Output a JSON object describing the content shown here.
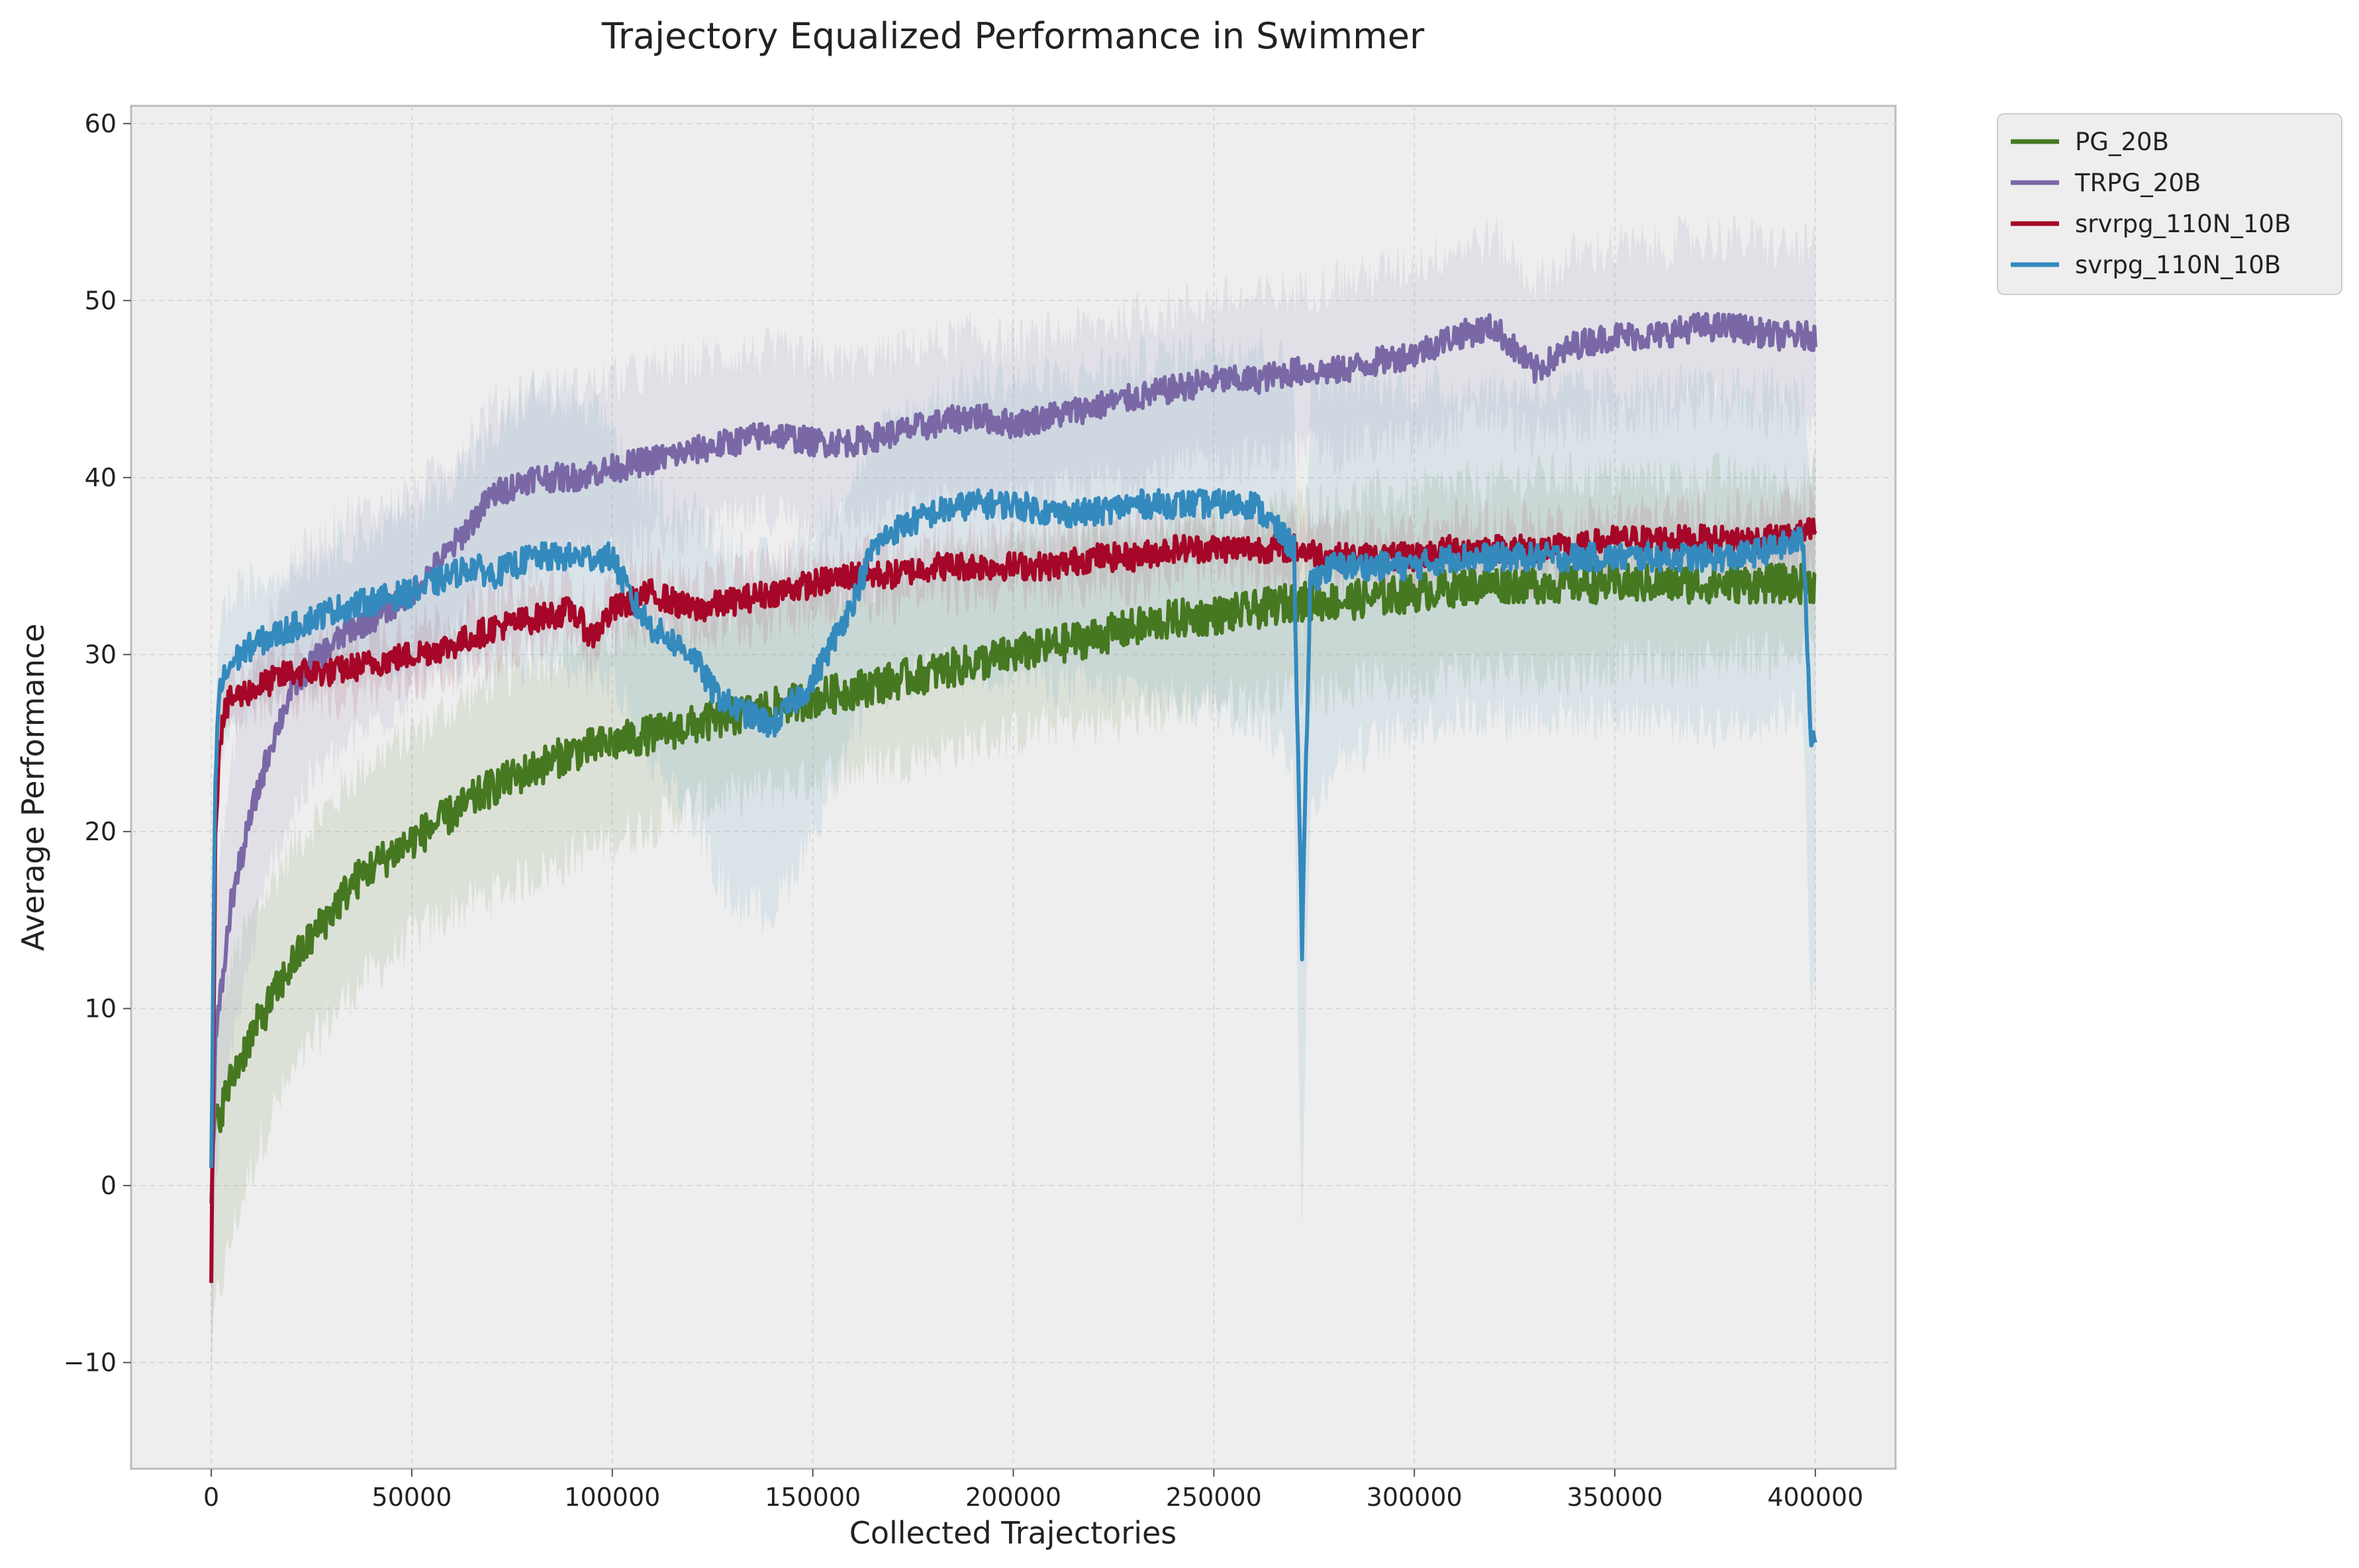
{
  "chart_data": {
    "type": "line",
    "title": "Trajectory Equalized Performance in Swimmer",
    "xlabel": "Collected Trajectories",
    "ylabel": "Average Performance",
    "xlim": [
      -20000,
      420000
    ],
    "ylim": [
      -16,
      61
    ],
    "xticks": [
      0,
      50000,
      100000,
      150000,
      200000,
      250000,
      300000,
      350000,
      400000
    ],
    "xtick_labels": [
      "0",
      "50000",
      "100000",
      "150000",
      "200000",
      "250000",
      "300000",
      "350000",
      "400000"
    ],
    "yticks": [
      -10,
      0,
      10,
      20,
      30,
      40,
      50,
      60
    ],
    "ytick_labels": [
      "−10",
      "0",
      "10",
      "20",
      "30",
      "40",
      "50",
      "60"
    ],
    "grid": true,
    "legend_position": "outside-top-right",
    "background": "#eeeeee",
    "series": [
      {
        "name": "PG_20B",
        "color": "#467821",
        "x": [
          0,
          1000,
          2000,
          5000,
          10000,
          15000,
          20000,
          25000,
          30000,
          35000,
          40000,
          50000,
          60000,
          70000,
          80000,
          90000,
          100000,
          110000,
          120000,
          130000,
          140000,
          150000,
          160000,
          170000,
          180000,
          190000,
          200000,
          210000,
          220000,
          230000,
          240000,
          250000,
          260000,
          270000,
          280000,
          290000,
          300000,
          310000,
          320000,
          330000,
          340000,
          350000,
          360000,
          370000,
          380000,
          390000,
          400000
        ],
        "y": [
          2,
          3.5,
          4,
          6,
          8.5,
          10.5,
          12.5,
          14,
          15.5,
          17,
          18,
          19.5,
          21,
          22.5,
          23.5,
          24.5,
          25,
          25.5,
          26,
          26.5,
          27,
          27.5,
          28,
          28.5,
          29,
          29.5,
          30,
          30.5,
          31,
          31.5,
          32,
          32.2,
          32.5,
          33,
          33,
          33.2,
          33.5,
          33.8,
          34,
          34,
          34,
          34,
          34,
          34,
          34,
          34,
          34
        ],
        "band_lower": [
          -10,
          -7,
          -6,
          -3,
          1,
          4,
          6,
          8,
          9.5,
          11,
          12,
          14,
          15.5,
          16.5,
          17.5,
          18.5,
          19.5,
          20.5,
          21.5,
          22,
          22.5,
          23,
          23.5,
          24,
          24.5,
          25,
          25.5,
          26,
          26,
          26.5,
          27,
          27.5,
          27.5,
          28,
          28,
          28.5,
          28.5,
          29,
          29,
          29,
          29,
          29.5,
          29.5,
          29.5,
          30,
          30,
          30
        ],
        "band_upper": [
          6,
          9,
          10,
          12.5,
          15,
          17,
          19,
          20.5,
          21.5,
          23,
          24,
          25.5,
          27,
          28.5,
          29.5,
          30.5,
          31,
          31.5,
          32,
          32.5,
          33,
          33.5,
          34,
          34.5,
          35,
          35.5,
          36,
          36.5,
          37,
          37,
          37.5,
          38,
          38,
          38.5,
          38.5,
          39,
          39,
          39.5,
          39.5,
          40,
          40,
          40,
          40,
          40,
          40,
          40,
          40
        ]
      },
      {
        "name": "TRPG_20B",
        "color": "#7a68a6",
        "x": [
          0,
          1000,
          2000,
          5000,
          10000,
          15000,
          20000,
          25000,
          30000,
          35000,
          40000,
          50000,
          60000,
          70000,
          80000,
          90000,
          100000,
          110000,
          120000,
          130000,
          140000,
          150000,
          160000,
          170000,
          180000,
          190000,
          200000,
          210000,
          220000,
          230000,
          240000,
          250000,
          260000,
          270000,
          280000,
          290000,
          300000,
          310000,
          320000,
          330000,
          340000,
          350000,
          360000,
          370000,
          380000,
          390000,
          400000
        ],
        "y": [
          -1,
          8,
          10,
          16,
          21,
          25,
          28,
          29.5,
          30.5,
          31.5,
          32,
          33.5,
          36,
          39,
          40,
          40,
          40.5,
          41,
          41.5,
          42,
          42.5,
          42,
          42,
          42.5,
          43,
          43.5,
          43,
          43.5,
          44,
          44.5,
          45,
          45.5,
          45.5,
          46,
          46,
          46.5,
          47,
          48,
          48.5,
          46,
          47.5,
          48,
          48,
          48.5,
          48.5,
          48,
          48
        ],
        "band_lower": [
          -12,
          0,
          2,
          8,
          13,
          18,
          21,
          23,
          24,
          25,
          26,
          28,
          31,
          34,
          35,
          35.5,
          36,
          36.5,
          37,
          37.5,
          38,
          37.5,
          37.5,
          38,
          38.5,
          39,
          38.5,
          39,
          39.5,
          40,
          40.5,
          41,
          41,
          41.5,
          41.5,
          42,
          42,
          43,
          43.5,
          42,
          43,
          43.5,
          43.5,
          44,
          44,
          43.5,
          43.5
        ],
        "band_upper": [
          6,
          16,
          18,
          24,
          29,
          32,
          35,
          36,
          37,
          38,
          38,
          39,
          41,
          44,
          45,
          45,
          45.5,
          46,
          46.5,
          47,
          47,
          46.5,
          46.5,
          47,
          47.5,
          48,
          47.5,
          48,
          48.5,
          49,
          49.5,
          50,
          50,
          50.5,
          51,
          51.5,
          52,
          53,
          53.5,
          51,
          52.5,
          53,
          53,
          53.5,
          53.5,
          53,
          53
        ]
      },
      {
        "name": "srvrpg_110N_10B",
        "color": "#a60628",
        "x": [
          0,
          1000,
          2000,
          3000,
          5000,
          10000,
          15000,
          20000,
          25000,
          30000,
          40000,
          50000,
          60000,
          70000,
          80000,
          90000,
          95000,
          100000,
          110000,
          120000,
          130000,
          140000,
          150000,
          160000,
          170000,
          180000,
          190000,
          200000,
          210000,
          220000,
          230000,
          240000,
          250000,
          260000,
          270000,
          280000,
          290000,
          300000,
          310000,
          320000,
          330000,
          340000,
          350000,
          360000,
          370000,
          380000,
          390000,
          400000
        ],
        "y": [
          -5.5,
          20,
          25,
          26.5,
          27.5,
          28,
          28.5,
          29,
          29,
          29,
          29.5,
          30,
          30.5,
          31.5,
          32,
          32.5,
          31,
          32.5,
          33.5,
          32.5,
          33,
          33.5,
          34,
          34.5,
          34.5,
          35,
          35,
          35,
          35,
          35.5,
          35.5,
          36,
          36,
          36,
          36,
          35.5,
          35.5,
          35.5,
          36,
          36,
          36,
          36,
          36.5,
          36.5,
          36.5,
          36.5,
          36.5,
          37
        ],
        "band_lower": [
          -8,
          18,
          23,
          25,
          26,
          26.5,
          27,
          27.5,
          27.5,
          27.5,
          28,
          28.5,
          29,
          30,
          30.5,
          31,
          29.5,
          31,
          32,
          31,
          31.5,
          32,
          32.5,
          33,
          33,
          33.5,
          33.5,
          33.5,
          33.5,
          34,
          34,
          34.5,
          34.5,
          34.5,
          34.5,
          34,
          34,
          34,
          34.5,
          34.5,
          34.5,
          34.5,
          35,
          35,
          35,
          35,
          35,
          35.5
        ],
        "band_upper": [
          -3,
          22,
          27,
          28,
          29,
          29.5,
          30,
          30.5,
          30.5,
          30.5,
          31,
          31.5,
          32,
          33,
          33.5,
          34,
          32.5,
          34,
          35,
          34,
          34.5,
          35,
          35.5,
          36,
          36,
          36.5,
          36.5,
          36.5,
          36.5,
          37,
          37,
          37.5,
          37.5,
          37.5,
          37.5,
          37,
          37,
          37,
          37.5,
          37.5,
          37.5,
          37.5,
          38,
          38,
          38,
          38,
          38,
          38.5
        ]
      },
      {
        "name": "svrpg_110N_10B",
        "color": "#348abd",
        "x": [
          0,
          1000,
          2000,
          5000,
          10000,
          15000,
          20000,
          25000,
          30000,
          40000,
          50000,
          60000,
          65000,
          70000,
          80000,
          90000,
          100000,
          105000,
          110000,
          120000,
          125000,
          130000,
          140000,
          150000,
          160000,
          165000,
          170000,
          180000,
          190000,
          200000,
          210000,
          220000,
          230000,
          240000,
          250000,
          260000,
          270000,
          272000,
          274000,
          276000,
          280000,
          290000,
          300000,
          310000,
          320000,
          330000,
          340000,
          350000,
          360000,
          370000,
          380000,
          390000,
          397000,
          399000,
          400000
        ],
        "y": [
          1,
          23,
          28,
          29.5,
          30.5,
          31,
          31.5,
          32,
          32.5,
          33,
          33.5,
          34.5,
          35,
          34.5,
          35.5,
          35.5,
          35.5,
          33,
          31.5,
          30,
          28,
          27,
          26,
          28.5,
          33,
          36,
          37,
          38,
          38.5,
          38.5,
          38,
          38,
          38.5,
          38.5,
          38.5,
          38.5,
          36,
          13,
          34,
          34.5,
          35,
          35,
          35,
          35.5,
          35.5,
          35.5,
          35.5,
          35.5,
          35.5,
          35.5,
          35.5,
          36,
          36.5,
          25,
          25.5
        ],
        "band_lower": [
          -5,
          18,
          24,
          26,
          27,
          27.5,
          28,
          28.5,
          29,
          29,
          29,
          29.5,
          29.5,
          29,
          29.5,
          29,
          28.5,
          26,
          24,
          21,
          18,
          16,
          15.5,
          20,
          25,
          28,
          28.5,
          29,
          29,
          29,
          28.5,
          28,
          28,
          27.5,
          27,
          26.5,
          24,
          -3,
          21,
          22,
          24,
          25,
          26,
          26.5,
          26.5,
          26.5,
          26.5,
          26.5,
          26.5,
          26,
          26,
          26.5,
          27,
          10,
          11
        ],
        "band_upper": [
          6,
          28,
          32,
          33,
          34,
          34.5,
          35,
          35.5,
          36,
          37,
          38,
          40,
          41,
          42,
          45,
          44,
          43,
          40,
          39,
          38,
          37,
          36,
          35,
          37,
          40,
          42,
          43,
          44.5,
          45.5,
          45.5,
          45.5,
          46,
          46.5,
          47,
          47.5,
          47.5,
          46,
          29,
          45,
          45.5,
          45.5,
          45.5,
          45,
          45,
          45,
          45,
          45,
          45,
          45,
          45,
          45,
          45,
          45,
          40,
          41
        ]
      }
    ]
  }
}
